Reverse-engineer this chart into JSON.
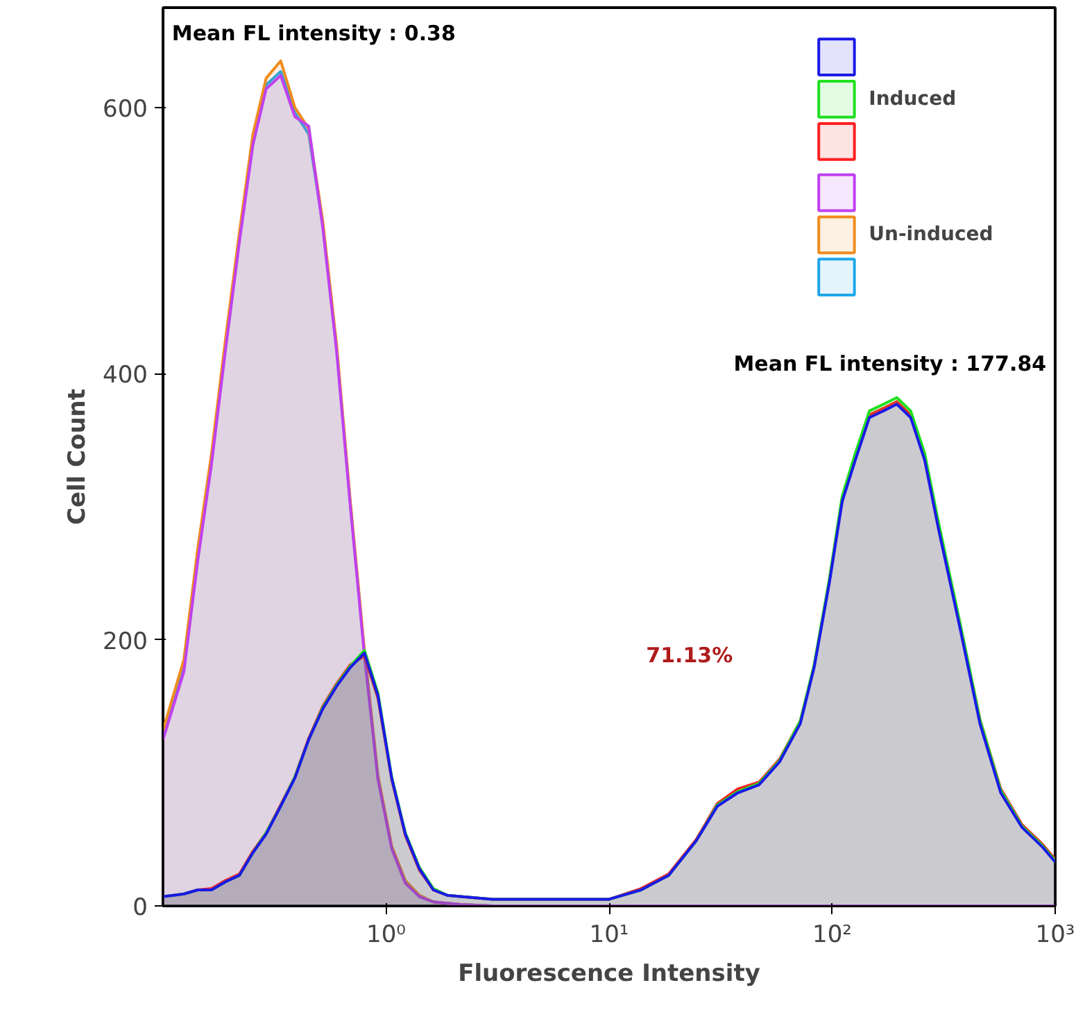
{
  "chart_data": {
    "type": "area",
    "xlabel": "Fluorescence Intensity",
    "ylabel": "Cell Count",
    "log": "x",
    "xlim": [
      0.1,
      1000
    ],
    "xticks": [
      {
        "value": 1,
        "label": "10⁰"
      },
      {
        "value": 10,
        "label": "10¹"
      },
      {
        "value": 100,
        "label": "10²"
      },
      {
        "value": 1000,
        "label": "10³"
      }
    ],
    "ylim": [
      0,
      675
    ],
    "yticks": [
      0,
      200,
      400,
      600
    ],
    "grid": false,
    "legend": "top right",
    "x": [
      0.1,
      0.124,
      0.143,
      0.165,
      0.19,
      0.22,
      0.253,
      0.29,
      0.337,
      0.39,
      0.45,
      0.52,
      0.6,
      0.69,
      0.8,
      0.92,
      1.06,
      1.22,
      1.41,
      1.63,
      1.88,
      2.16,
      3,
      5,
      10,
      13.9,
      18.5,
      24.6,
      30.6,
      37.8,
      47,
      58,
      72,
      83,
      97,
      111,
      127,
      147,
      170,
      195,
      225,
      260,
      300,
      373,
      460,
      570,
      710,
      880,
      1000
    ],
    "series": [
      {
        "name": null,
        "color": "#1ea7e8",
        "values": [
          127,
          179,
          262,
          335,
          419,
          502,
          575,
          617,
          627,
          596,
          580,
          512,
          419,
          304,
          190,
          96,
          44,
          18,
          7,
          3,
          2,
          1,
          0,
          0,
          0,
          0,
          0,
          0,
          0,
          0,
          0,
          0,
          0,
          0,
          0,
          0,
          0,
          0,
          0,
          0,
          0,
          0,
          0,
          0,
          0,
          0,
          0,
          0,
          0
        ]
      },
      {
        "name": "Un-induced",
        "color": "#f08c1e",
        "values": [
          132,
          185,
          268,
          340,
          424,
          506,
          580,
          622,
          635,
          600,
          584,
          515,
          422,
          306,
          192,
          98,
          45,
          19,
          8,
          3,
          2,
          1,
          0,
          0,
          0,
          0,
          0,
          0,
          0,
          0,
          0,
          0,
          0,
          0,
          0,
          0,
          0,
          0,
          0,
          0,
          0,
          0,
          0,
          0,
          0,
          0,
          0,
          0,
          0
        ]
      },
      {
        "name": null,
        "color": "#c040f0",
        "values": [
          125,
          176,
          259,
          332,
          416,
          499,
          572,
          614,
          624,
          593,
          586,
          510,
          417,
          302,
          188,
          95,
          43,
          17,
          7,
          3,
          2,
          1,
          0,
          0,
          0,
          0,
          0,
          0,
          0,
          0,
          0,
          0,
          0,
          0,
          0,
          0,
          0,
          0,
          0,
          0,
          0,
          0,
          0,
          0,
          0,
          0,
          0,
          0,
          0
        ]
      },
      {
        "name": null,
        "color": "#ff2020",
        "values": [
          7,
          9,
          12,
          13,
          19,
          24,
          41,
          55,
          76,
          97,
          126,
          150,
          167,
          181,
          188,
          156,
          95,
          53,
          27,
          12,
          8,
          7,
          5,
          5,
          5,
          13,
          24,
          50,
          77,
          88,
          93,
          110,
          139,
          180,
          244,
          306,
          337,
          369,
          374,
          379,
          369,
          338,
          286,
          213,
          140,
          88,
          61,
          46,
          35
        ]
      },
      {
        "name": "Induced",
        "color": "#20e020",
        "values": [
          7,
          9,
          12,
          12,
          18,
          23,
          40,
          55,
          75,
          97,
          125,
          149,
          166,
          180,
          192,
          160,
          97,
          55,
          29,
          13,
          8,
          7,
          5,
          5,
          5,
          12,
          23,
          49,
          76,
          86,
          92,
          109,
          139,
          181,
          245,
          308,
          340,
          372,
          377,
          382,
          372,
          340,
          288,
          214,
          140,
          87,
          60,
          45,
          34
        ]
      },
      {
        "name": null,
        "color": "#1a1ae6",
        "values": [
          7,
          9,
          12,
          12,
          18,
          23,
          40,
          54,
          75,
          96,
          125,
          148,
          165,
          179,
          190,
          158,
          96,
          54,
          28,
          12,
          8,
          7,
          5,
          5,
          5,
          12,
          23,
          49,
          75,
          85,
          91,
          108,
          137,
          179,
          242,
          304,
          335,
          367,
          372,
          377,
          367,
          335,
          283,
          210,
          137,
          85,
          59,
          44,
          33
        ]
      }
    ],
    "annotations": [
      "Mean FL intensity : 0.38",
      "Mean FL intensity : 177.84",
      "71.13%"
    ]
  }
}
